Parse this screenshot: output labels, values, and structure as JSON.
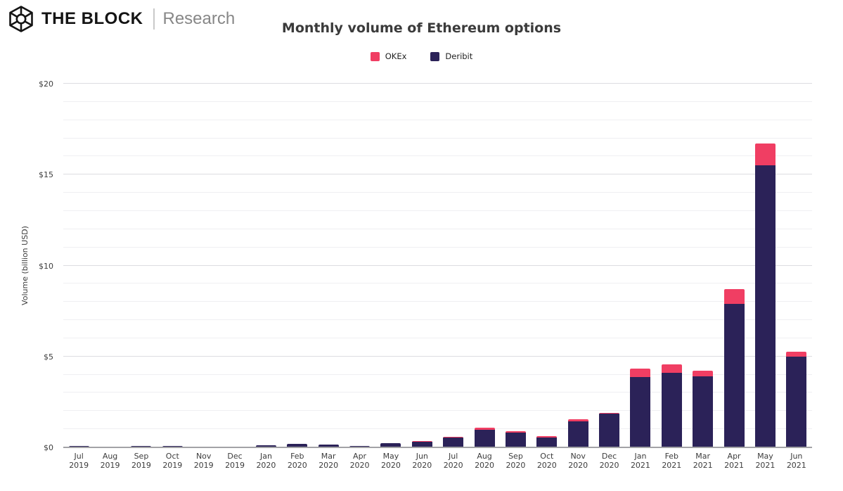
{
  "header": {
    "brand": "THE BLOCK",
    "brand_sub": "Research",
    "logo_icon": "the-block-cube-logo"
  },
  "chart_data": {
    "type": "bar",
    "stacked": true,
    "title": "Monthly volume of Ethereum options",
    "xlabel": "",
    "ylabel": "Volume (billion USD)",
    "ylim": [
      0,
      20
    ],
    "y_ticks": [
      "$0",
      "$5",
      "$10",
      "$15",
      "$20"
    ],
    "y_tick_values": [
      0,
      5,
      10,
      15,
      20
    ],
    "gridline_step": 1,
    "grid": true,
    "legend_position": "top-center",
    "categories": [
      "Jul 2019",
      "Aug 2019",
      "Sep 2019",
      "Oct 2019",
      "Nov 2019",
      "Dec 2019",
      "Jan 2020",
      "Feb 2020",
      "Mar 2020",
      "Apr 2020",
      "May 2020",
      "Jun 2020",
      "Jul 2020",
      "Aug 2020",
      "Sep 2020",
      "Oct 2020",
      "Nov 2020",
      "Dec 2020",
      "Jan 2021",
      "Feb 2021",
      "Mar 2021",
      "Apr 2021",
      "May 2021",
      "Jun 2021"
    ],
    "series": [
      {
        "name": "OKEx",
        "color": "#F03E63",
        "values": [
          0,
          0,
          0,
          0,
          0,
          0,
          0,
          0,
          0,
          0,
          0,
          0.04,
          0.05,
          0.13,
          0.1,
          0.07,
          0.1,
          0.05,
          0.5,
          0.45,
          0.3,
          0.8,
          1.2,
          0.27
        ]
      },
      {
        "name": "Deribit",
        "color": "#2B2258",
        "values": [
          0.06,
          0.02,
          0.08,
          0.08,
          0.03,
          0.03,
          0.1,
          0.2,
          0.15,
          0.08,
          0.23,
          0.3,
          0.55,
          0.95,
          0.8,
          0.55,
          1.45,
          1.85,
          3.85,
          4.1,
          3.9,
          7.9,
          15.5,
          5.0
        ]
      }
    ]
  },
  "colors": {
    "background": "#FFFFFF",
    "title_text": "#3B3B3B",
    "axis_text": "#3C3C3C",
    "gridline_minor": "#EFEFF2",
    "gridline_major": "#DDDDE1",
    "baseline": "#A3A3A6",
    "brand_text": "#141414",
    "brand_sub_text": "#878787"
  }
}
